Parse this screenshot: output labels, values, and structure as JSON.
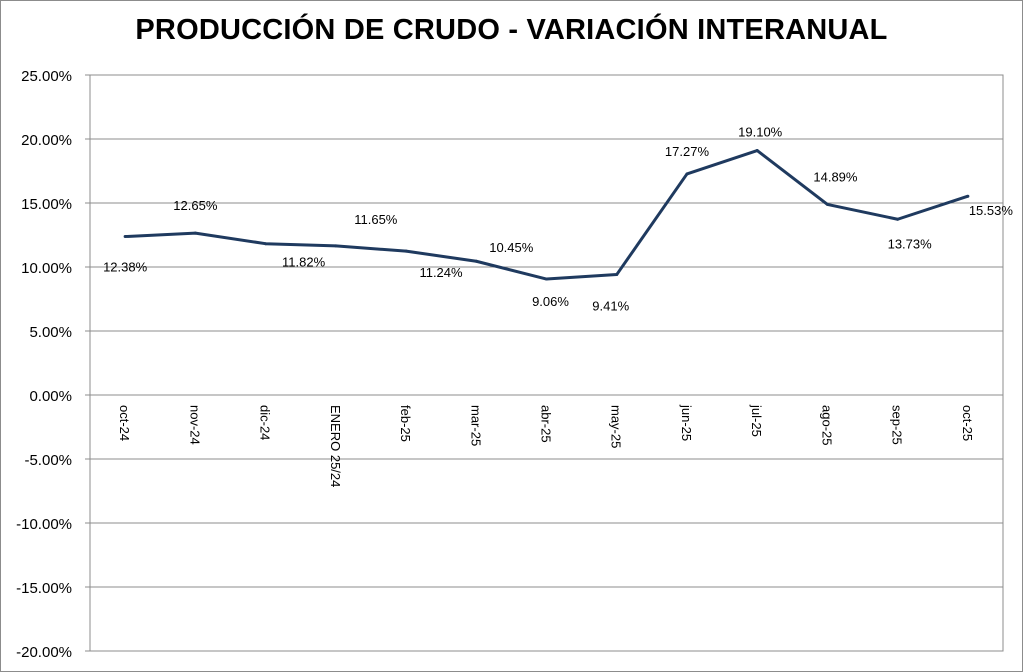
{
  "chart_data": {
    "type": "line",
    "title": "PRODUCCIÓN DE CRUDO - VARIACIÓN INTERANUAL",
    "xlabel": "",
    "ylabel": "",
    "ylim": [
      -20,
      25
    ],
    "yticks": [
      25,
      20,
      15,
      10,
      5,
      0,
      -5,
      -10,
      -15,
      -20
    ],
    "ytick_labels": [
      "25.00%",
      "20.00%",
      "15.00%",
      "10.00%",
      "5.00%",
      "0.00%",
      "-5.00%",
      "-10.00%",
      "-15.00%",
      "-20.00%"
    ],
    "grid": true,
    "legend": "none",
    "categories": [
      "oct-24",
      "nov-24",
      "dic-24",
      "ENERO 25/24",
      "feb-25",
      "mar-25",
      "abr-25",
      "may-25",
      "jun-25",
      "jul-25",
      "ago-25",
      "sep-25",
      "oct-25"
    ],
    "series": [
      {
        "name": "Variación interanual",
        "color": "#1f3a5f",
        "values": [
          12.38,
          12.65,
          11.82,
          11.65,
          11.24,
          10.45,
          9.06,
          9.41,
          17.27,
          19.1,
          14.89,
          13.73,
          15.53
        ],
        "labels": [
          "12.38%",
          "12.65%",
          "11.82%",
          "11.65%",
          "11.24%",
          "10.45%",
          "9.06%",
          "9.41%",
          "17.27%",
          "19.10%",
          "14.89%",
          "13.73%",
          "15.53%"
        ]
      }
    ]
  }
}
